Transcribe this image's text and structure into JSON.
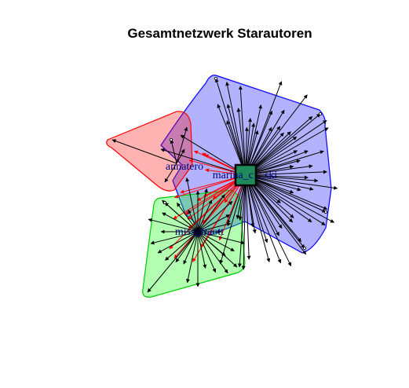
{
  "title": "Gesamtnetzwerk Starautoren",
  "colors": {
    "group_annatero": "#ff0000",
    "group_marina": "#0000ff",
    "group_missgiraott": "#00cc00",
    "group_annatero_fill": "rgba(255,0,0,0.30)",
    "group_marina_fill": "rgba(0,0,255,0.30)",
    "group_missgiraott_fill": "rgba(0,255,0,0.30)",
    "hub_node": "#1f8a5a",
    "edge_default": "#000000",
    "edge_cross": "#ff0000"
  },
  "nodes": [
    {
      "id": "annatero",
      "label": "annatero",
      "group": "annatero"
    },
    {
      "id": "marina",
      "label": "marina_c…ski",
      "group": "marina"
    },
    {
      "id": "missgiraott",
      "label": "missgiraott",
      "group": "missgiraott"
    }
  ]
}
